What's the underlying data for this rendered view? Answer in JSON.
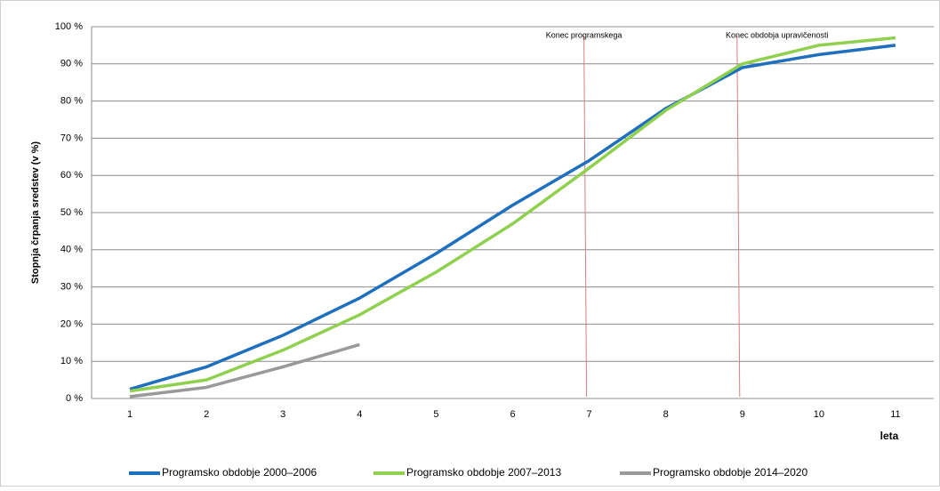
{
  "chart_data": {
    "type": "line",
    "y_label": "Stopnja črpanja sredstev (v %)",
    "x_label": "leta",
    "categories": [
      "1",
      "2",
      "3",
      "4",
      "5",
      "6",
      "7",
      "8",
      "9",
      "10",
      "11"
    ],
    "series": [
      {
        "name": "Programsko obdobje 2000–2006",
        "color": "#1f6fbf",
        "values": [
          2.5,
          8.5,
          17,
          27,
          39,
          52,
          64,
          78,
          89,
          92.5,
          95
        ]
      },
      {
        "name": "Programsko obdobje 2007–2013",
        "color": "#8fd14f",
        "values": [
          2,
          5,
          13,
          22.5,
          34,
          47,
          62,
          77.5,
          90,
          95,
          97
        ]
      },
      {
        "name": "Programsko obdobje 2014–2020",
        "color": "#999999",
        "values": [
          0.5,
          3,
          8.5,
          14.5,
          null,
          null,
          null,
          null,
          null,
          null,
          null
        ]
      }
    ],
    "ylim": [
      0,
      100
    ],
    "yticks": [
      {
        "value": 0,
        "label": "0 %"
      },
      {
        "value": 10,
        "label": "10 %"
      },
      {
        "value": 20,
        "label": "20 %"
      },
      {
        "value": 30,
        "label": "30 %"
      },
      {
        "value": 40,
        "label": "40 %"
      },
      {
        "value": 50,
        "label": "50 %"
      },
      {
        "value": 60,
        "label": "60 %"
      },
      {
        "value": 70,
        "label": "70 %"
      },
      {
        "value": 80,
        "label": "80 %"
      },
      {
        "value": 90,
        "label": "90 %"
      },
      {
        "value": 100,
        "label": "100 %"
      }
    ],
    "grid": true,
    "annotations": [
      {
        "text": "Konec programskega",
        "x": 7
      },
      {
        "text": "Konec obdobja upravičenosti",
        "x": 9
      }
    ],
    "legend": "bottom"
  }
}
